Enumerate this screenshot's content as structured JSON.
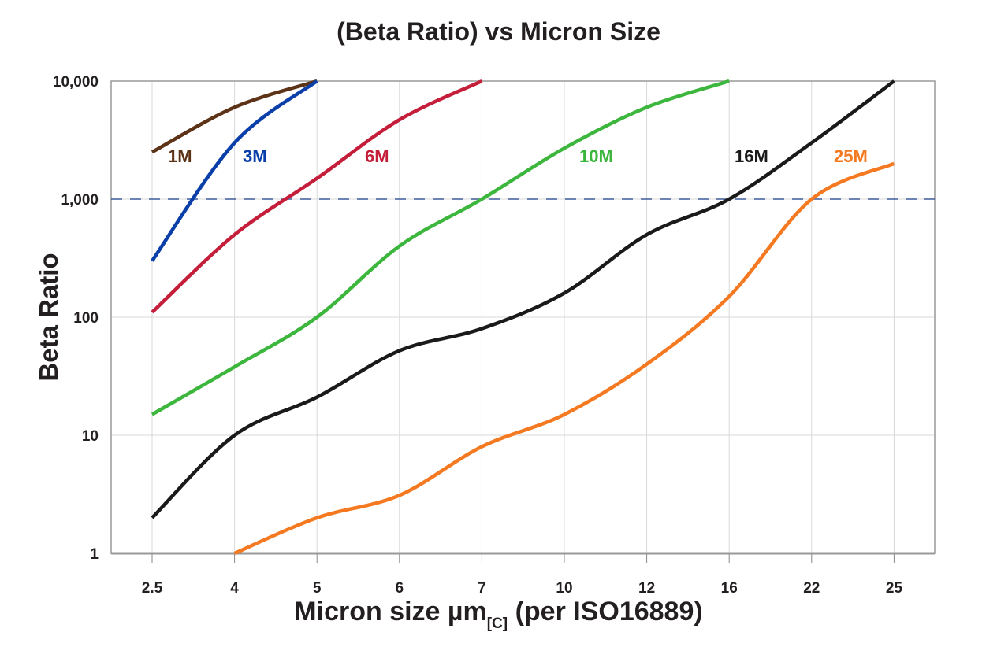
{
  "chart_data": {
    "type": "line",
    "title": "(Beta Ratio) vs Micron Size",
    "xlabel": {
      "main": "Micron size µm",
      "subscript": "[C]",
      "suffix": " (per ISO16889)"
    },
    "ylabel": "Beta Ratio",
    "categories": [
      "2.5",
      "4",
      "5",
      "6",
      "7",
      "10",
      "12",
      "16",
      "22",
      "25"
    ],
    "y_scale": "log",
    "ylim": [
      1,
      10000
    ],
    "y_ticks": [
      1,
      10,
      100,
      1000,
      10000
    ],
    "y_tick_labels": [
      "1",
      "10",
      "100",
      "1,000",
      "10,000"
    ],
    "grid": true,
    "reference_line": {
      "y": 1000,
      "style": "dashed",
      "color": "#3b5a9a"
    },
    "legend": "inline labels",
    "series": [
      {
        "name": "1M",
        "color": "#5c3317",
        "values": [
          2500,
          6000,
          10000,
          null,
          null,
          null,
          null,
          null,
          null,
          null
        ]
      },
      {
        "name": "3M",
        "color": "#0a3ea8",
        "values": [
          300,
          3000,
          10000,
          null,
          null,
          null,
          null,
          null,
          null,
          null
        ]
      },
      {
        "name": "6M",
        "color": "#c41e3a",
        "values": [
          110,
          500,
          1500,
          4700,
          10000,
          null,
          null,
          null,
          null,
          null
        ]
      },
      {
        "name": "10M",
        "color": "#3cb63c",
        "values": [
          15,
          38,
          100,
          400,
          1000,
          2700,
          6000,
          10000,
          null,
          null
        ]
      },
      {
        "name": "16M",
        "color": "#1a1a1a",
        "values": [
          2,
          10,
          21,
          52,
          80,
          160,
          500,
          1000,
          3000,
          10000
        ]
      },
      {
        "name": "25M",
        "color": "#f47920",
        "values": [
          null,
          1,
          2,
          3.1,
          8,
          15,
          40,
          150,
          1000,
          2000
        ]
      }
    ]
  }
}
